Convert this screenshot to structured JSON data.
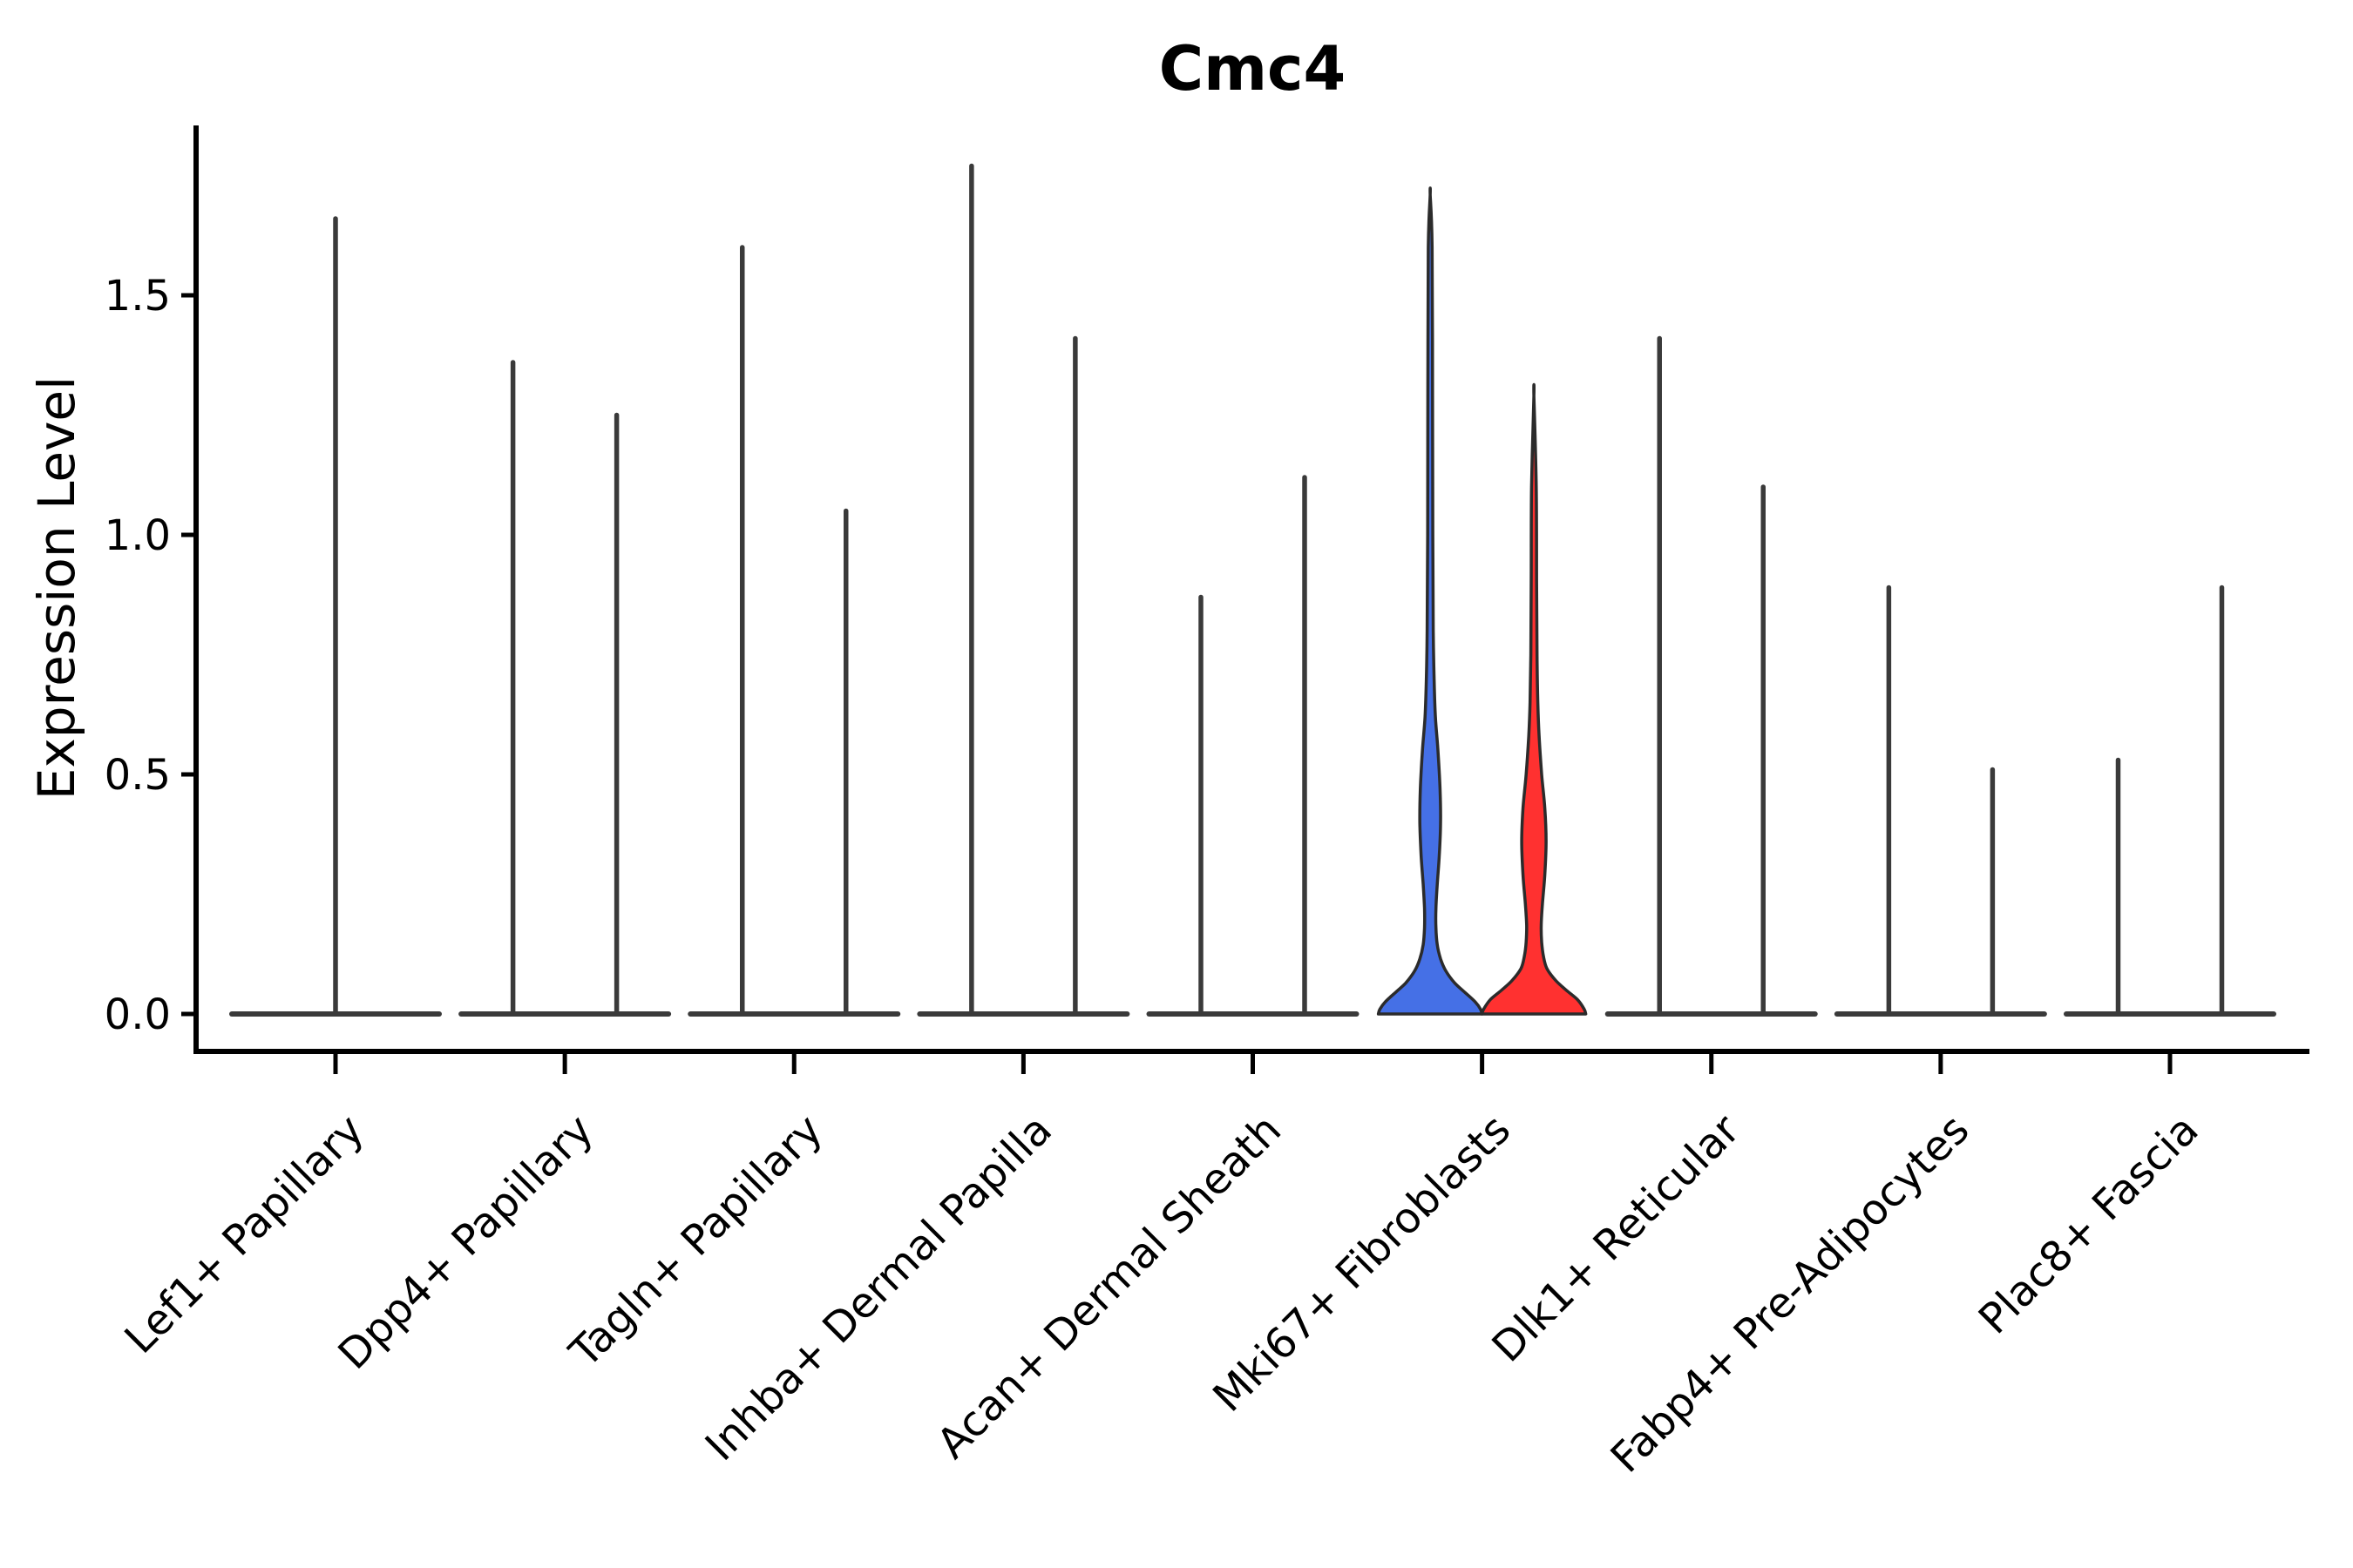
{
  "chart_data": {
    "type": "violin",
    "title": "Cmc4",
    "ylabel": "Expression Level",
    "xlabel": "",
    "grid": false,
    "legend": "none",
    "ylim": [
      -0.08,
      1.86
    ],
    "yticks": [
      {
        "label": "0.0",
        "value": 0.0
      },
      {
        "label": "0.5",
        "value": 0.5
      },
      {
        "label": "1.0",
        "value": 1.0
      },
      {
        "label": "1.5",
        "value": 1.5
      }
    ],
    "colors": {
      "needle": "#3A3A3A",
      "baseline": "#3A3A3A",
      "violin_outline": "#2B2B2B",
      "blue_fill": "#4570E6",
      "red_fill": "#FF3130",
      "axis": "#000000"
    },
    "categories": [
      "Lef1+ Papillary",
      "Dpp4+ Papillary",
      "Tagln+ Papillary",
      "Inhba+ Dermal Papilla",
      "Acan+ Dermal Sheath",
      "Mki67+ Fibroblasts",
      "Dlk1+ Reticular",
      "Fabp4+ Pre-Adipocytes",
      "Plac8+ Fascia"
    ],
    "violins": [
      {
        "category": "Lef1+ Papillary",
        "slot": "center",
        "max": 1.66,
        "style": "needle"
      },
      {
        "category": "Dpp4+ Papillary",
        "slot": "left",
        "max": 1.36,
        "style": "needle"
      },
      {
        "category": "Dpp4+ Papillary",
        "slot": "right",
        "max": 1.25,
        "style": "needle"
      },
      {
        "category": "Tagln+ Papillary",
        "slot": "left",
        "max": 1.6,
        "style": "needle"
      },
      {
        "category": "Tagln+ Papillary",
        "slot": "right",
        "max": 1.05,
        "style": "needle"
      },
      {
        "category": "Inhba+ Dermal Papilla",
        "slot": "left",
        "max": 1.77,
        "style": "needle"
      },
      {
        "category": "Inhba+ Dermal Papilla",
        "slot": "right",
        "max": 1.41,
        "style": "needle"
      },
      {
        "category": "Acan+ Dermal Sheath",
        "slot": "left",
        "max": 0.87,
        "style": "needle"
      },
      {
        "category": "Acan+ Dermal Sheath",
        "slot": "right",
        "max": 1.12,
        "style": "needle"
      },
      {
        "category": "Mki67+ Fibroblasts",
        "slot": "left",
        "max": 1.71,
        "style": "filled",
        "fill": "#4570E6",
        "profile": [
          [
            0,
            1.0
          ],
          [
            0.01,
            0.97
          ],
          [
            0.025,
            0.87
          ],
          [
            0.045,
            0.67
          ],
          [
            0.065,
            0.47
          ],
          [
            0.09,
            0.3
          ],
          [
            0.115,
            0.2
          ],
          [
            0.145,
            0.135
          ],
          [
            0.18,
            0.11
          ],
          [
            0.22,
            0.11
          ],
          [
            0.27,
            0.135
          ],
          [
            0.33,
            0.175
          ],
          [
            0.4,
            0.2
          ],
          [
            0.47,
            0.19
          ],
          [
            0.55,
            0.15
          ],
          [
            0.62,
            0.1
          ],
          [
            0.7,
            0.075
          ],
          [
            0.8,
            0.059
          ],
          [
            1.0,
            0.05
          ],
          [
            1.3,
            0.045
          ],
          [
            1.6,
            0.037
          ],
          [
            1.71,
            0.0
          ]
        ]
      },
      {
        "category": "Mki67+ Fibroblasts",
        "slot": "right",
        "max": 1.29,
        "style": "filled",
        "fill": "#FF3130",
        "profile": [
          [
            0,
            1.0
          ],
          [
            0.01,
            0.97
          ],
          [
            0.03,
            0.84
          ],
          [
            0.05,
            0.62
          ],
          [
            0.07,
            0.42
          ],
          [
            0.095,
            0.25
          ],
          [
            0.12,
            0.185
          ],
          [
            0.15,
            0.15
          ],
          [
            0.185,
            0.14
          ],
          [
            0.23,
            0.165
          ],
          [
            0.29,
            0.21
          ],
          [
            0.36,
            0.235
          ],
          [
            0.43,
            0.21
          ],
          [
            0.5,
            0.15
          ],
          [
            0.58,
            0.1
          ],
          [
            0.65,
            0.075
          ],
          [
            0.75,
            0.06
          ],
          [
            0.9,
            0.052
          ],
          [
            1.1,
            0.045
          ],
          [
            1.29,
            0.0
          ]
        ]
      },
      {
        "category": "Dlk1+ Reticular",
        "slot": "left",
        "max": 1.41,
        "style": "needle"
      },
      {
        "category": "Dlk1+ Reticular",
        "slot": "right",
        "max": 1.1,
        "style": "needle"
      },
      {
        "category": "Fabp4+ Pre-Adipocytes",
        "slot": "left",
        "max": 0.89,
        "style": "needle"
      },
      {
        "category": "Fabp4+ Pre-Adipocytes",
        "slot": "right",
        "max": 0.51,
        "style": "needle"
      },
      {
        "category": "Plac8+ Fascia",
        "slot": "left",
        "max": 0.53,
        "style": "needle"
      },
      {
        "category": "Plac8+ Fascia",
        "slot": "right",
        "max": 0.89,
        "style": "needle"
      }
    ]
  }
}
